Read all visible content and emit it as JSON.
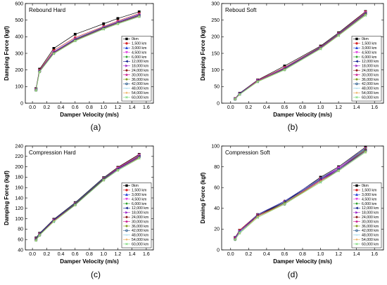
{
  "legend_entries": [
    "0km",
    "1,500 km",
    "3,000 km",
    "4,500 km",
    "6,000 km",
    "12,000 km",
    "18,000 km",
    "24,000 km",
    "30,000 km",
    "36,000 km",
    "42,000 km",
    "48,000 km",
    "54,000 km",
    "60,000 km"
  ],
  "legend_colors": [
    "#000000",
    "#d62728",
    "#1f3fd6",
    "#e040e0",
    "#2ca02c",
    "#0a1a8a",
    "#9a22c8",
    "#8b1a1a",
    "#c8158c",
    "#7f9a1a",
    "#2f5f8f",
    "#7ec8e3",
    "#e8a040",
    "#88dd88"
  ],
  "legend_markers": [
    "square",
    "circle",
    "triangle-up",
    "triangle-down",
    "diamond",
    "triangle-left",
    "triangle-right",
    "hexagon",
    "star",
    "pentagon",
    "circle-open",
    "line",
    "cross",
    "x"
  ],
  "chart_data": [
    {
      "panel": "a",
      "type": "line",
      "title": "Rebound Hard",
      "caption": "(a)",
      "xlabel": "Damper Velocity (m/s)",
      "ylabel": "Damping Force (kgf)",
      "xlim": [
        -0.1,
        1.7
      ],
      "ylim": [
        0,
        600
      ],
      "xticks": [
        "0.0",
        "0.2",
        "0.4",
        "0.6",
        "0.8",
        "1.0",
        "1.2",
        "1.4",
        "1.6"
      ],
      "yticks": [
        "0",
        "100",
        "200",
        "300",
        "400",
        "500",
        "600"
      ],
      "grid": false,
      "legend_position": "lower-right",
      "x": [
        0.05,
        0.1,
        0.3,
        0.6,
        1.0,
        1.2,
        1.5
      ],
      "series": [
        {
          "name": "0km",
          "values": [
            88,
            205,
            330,
            415,
            478,
            510,
            550
          ]
        },
        {
          "name": "1,500 km",
          "values": [
            85,
            200,
            318,
            395,
            462,
            495,
            540
          ]
        },
        {
          "name": "3,000 km",
          "values": [
            83,
            196,
            310,
            388,
            458,
            490,
            535
          ]
        },
        {
          "name": "4,500 km",
          "values": [
            82,
            195,
            308,
            386,
            456,
            488,
            532
          ]
        },
        {
          "name": "6,000 km",
          "values": [
            82,
            194,
            306,
            384,
            455,
            486,
            530
          ]
        },
        {
          "name": "12,000 km",
          "values": [
            81,
            193,
            305,
            382,
            453,
            485,
            528
          ]
        },
        {
          "name": "18,000 km",
          "values": [
            80,
            192,
            304,
            381,
            452,
            484,
            527
          ]
        },
        {
          "name": "24,000 km",
          "values": [
            80,
            192,
            303,
            380,
            451,
            483,
            526
          ]
        },
        {
          "name": "30,000 km",
          "values": [
            79,
            191,
            302,
            379,
            450,
            482,
            525
          ]
        },
        {
          "name": "36,000 km",
          "values": [
            79,
            190,
            301,
            378,
            449,
            481,
            524
          ]
        },
        {
          "name": "42,000 km",
          "values": [
            78,
            190,
            300,
            377,
            448,
            480,
            523
          ]
        },
        {
          "name": "48,000 km",
          "values": [
            78,
            189,
            299,
            376,
            447,
            479,
            522
          ]
        },
        {
          "name": "54,000 km",
          "values": [
            77,
            188,
            298,
            375,
            446,
            478,
            521
          ]
        },
        {
          "name": "60,000 km",
          "values": [
            77,
            188,
            297,
            374,
            445,
            477,
            520
          ]
        }
      ]
    },
    {
      "panel": "b",
      "type": "line",
      "title": "Reboud Soft",
      "caption": "(b)",
      "xlabel": "Damper Velocity (m/s)",
      "ylabel": "Damping Force (kgf)",
      "xlim": [
        -0.1,
        1.7
      ],
      "ylim": [
        0,
        300
      ],
      "xticks": [
        "0.0",
        "0.2",
        "0.4",
        "0.6",
        "0.8",
        "1.0",
        "1.2",
        "1.4",
        "1.6"
      ],
      "yticks": [
        "0",
        "50",
        "100",
        "150",
        "200",
        "250",
        "300"
      ],
      "grid": false,
      "legend_position": "lower-right",
      "x": [
        0.05,
        0.1,
        0.3,
        0.6,
        1.0,
        1.2,
        1.5
      ],
      "series": [
        {
          "name": "0km",
          "values": [
            14,
            30,
            70,
            112,
            172,
            212,
            276
          ]
        },
        {
          "name": "1,500 km",
          "values": [
            14,
            29,
            69,
            108,
            170,
            210,
            275
          ]
        },
        {
          "name": "3,000 km",
          "values": [
            13,
            29,
            68,
            106,
            169,
            209,
            273
          ]
        },
        {
          "name": "4,500 km",
          "values": [
            13,
            28,
            68,
            105,
            168,
            208,
            272
          ]
        },
        {
          "name": "6,000 km",
          "values": [
            13,
            28,
            67,
            104,
            168,
            208,
            271
          ]
        },
        {
          "name": "12,000 km",
          "values": [
            13,
            28,
            67,
            104,
            167,
            207,
            270
          ]
        },
        {
          "name": "18,000 km",
          "values": [
            13,
            28,
            67,
            103,
            167,
            207,
            270
          ]
        },
        {
          "name": "24,000 km",
          "values": [
            12,
            27,
            66,
            103,
            166,
            206,
            269
          ]
        },
        {
          "name": "30,000 km",
          "values": [
            12,
            27,
            66,
            102,
            166,
            206,
            268
          ]
        },
        {
          "name": "36,000 km",
          "values": [
            12,
            27,
            66,
            102,
            165,
            205,
            268
          ]
        },
        {
          "name": "42,000 km",
          "values": [
            12,
            27,
            65,
            101,
            165,
            205,
            267
          ]
        },
        {
          "name": "48,000 km",
          "values": [
            12,
            26,
            65,
            101,
            164,
            204,
            266
          ]
        },
        {
          "name": "54,000 km",
          "values": [
            12,
            26,
            65,
            100,
            164,
            204,
            265
          ]
        },
        {
          "name": "60,000 km",
          "values": [
            12,
            26,
            64,
            100,
            163,
            203,
            264
          ]
        }
      ]
    },
    {
      "panel": "c",
      "type": "line",
      "title": "Compression Hard",
      "caption": "(c)",
      "xlabel": "Damper Velocity (m/s)",
      "ylabel": "Damping Force (kgf)",
      "xlim": [
        -0.1,
        1.7
      ],
      "ylim": [
        40,
        240
      ],
      "xticks": [
        "0.0",
        "0.2",
        "0.4",
        "0.6",
        "0.8",
        "1.0",
        "1.2",
        "1.4",
        "1.6"
      ],
      "yticks": [
        "40",
        "60",
        "80",
        "100",
        "120",
        "140",
        "160",
        "180",
        "200",
        "220",
        "240"
      ],
      "grid": false,
      "legend_position": "lower-right",
      "x": [
        0.05,
        0.1,
        0.3,
        0.6,
        1.0,
        1.2,
        1.5
      ],
      "series": [
        {
          "name": "0km",
          "values": [
            63,
            72,
            99,
            131,
            179,
            199,
            224
          ]
        },
        {
          "name": "1,500 km",
          "values": [
            62,
            71,
            98,
            130,
            178,
            198,
            223
          ]
        },
        {
          "name": "3,000 km",
          "values": [
            62,
            71,
            98,
            130,
            178,
            197,
            222
          ]
        },
        {
          "name": "4,500 km",
          "values": [
            61,
            70,
            97,
            129,
            177,
            197,
            222
          ]
        },
        {
          "name": "6,000 km",
          "values": [
            61,
            70,
            97,
            129,
            177,
            196,
            221
          ]
        },
        {
          "name": "12,000 km",
          "values": [
            60,
            70,
            97,
            128,
            176,
            196,
            220
          ]
        },
        {
          "name": "18,000 km",
          "values": [
            60,
            69,
            96,
            128,
            176,
            195,
            220
          ]
        },
        {
          "name": "24,000 km",
          "values": [
            60,
            69,
            96,
            128,
            176,
            195,
            219
          ]
        },
        {
          "name": "30,000 km",
          "values": [
            59,
            69,
            96,
            127,
            175,
            195,
            219
          ]
        },
        {
          "name": "36,000 km",
          "values": [
            59,
            69,
            95,
            127,
            175,
            194,
            218
          ]
        },
        {
          "name": "42,000 km",
          "values": [
            59,
            68,
            95,
            127,
            175,
            194,
            218
          ]
        },
        {
          "name": "48,000 km",
          "values": [
            58,
            68,
            95,
            126,
            174,
            194,
            217
          ]
        },
        {
          "name": "54,000 km",
          "values": [
            58,
            68,
            95,
            126,
            174,
            193,
            217
          ]
        },
        {
          "name": "60,000 km",
          "values": [
            58,
            68,
            94,
            126,
            174,
            193,
            216
          ]
        }
      ]
    },
    {
      "panel": "d",
      "type": "line",
      "title": "Compression Soft",
      "caption": "(d)",
      "xlabel": "Damper Velocity (m/s)",
      "ylabel": "Daming Force (kgf)",
      "xlim": [
        -0.1,
        1.7
      ],
      "ylim": [
        0,
        100
      ],
      "xticks": [
        "0.0",
        "0.2",
        "0.4",
        "0.6",
        "0.8",
        "1.0",
        "1.2",
        "1.4",
        "1.6"
      ],
      "yticks": [
        "0",
        "20",
        "40",
        "60",
        "80",
        "100"
      ],
      "grid": false,
      "legend_position": "lower-right",
      "x": [
        0.05,
        0.1,
        0.3,
        0.6,
        1.0,
        1.2,
        1.5
      ],
      "series": [
        {
          "name": "0km",
          "values": [
            12,
            19,
            34,
            46,
            70,
            80,
            99
          ]
        },
        {
          "name": "1,500 km",
          "values": [
            12,
            19,
            34,
            47,
            69,
            79,
            98
          ]
        },
        {
          "name": "3,000 km",
          "values": [
            12,
            18,
            34,
            47,
            69,
            79,
            98
          ]
        },
        {
          "name": "4,500 km",
          "values": [
            11,
            18,
            33,
            46,
            68,
            79,
            97
          ]
        },
        {
          "name": "6,000 km",
          "values": [
            11,
            18,
            33,
            46,
            68,
            78,
            97
          ]
        },
        {
          "name": "12,000 km",
          "values": [
            11,
            18,
            33,
            46,
            68,
            78,
            96
          ]
        },
        {
          "name": "18,000 km",
          "values": [
            11,
            18,
            33,
            45,
            67,
            78,
            96
          ]
        },
        {
          "name": "24,000 km",
          "values": [
            11,
            17,
            33,
            45,
            67,
            77,
            96
          ]
        },
        {
          "name": "30,000 km",
          "values": [
            11,
            17,
            32,
            45,
            67,
            77,
            95
          ]
        },
        {
          "name": "36,000 km",
          "values": [
            10,
            17,
            32,
            45,
            66,
            77,
            95
          ]
        },
        {
          "name": "42,000 km",
          "values": [
            10,
            17,
            32,
            44,
            66,
            77,
            95
          ]
        },
        {
          "name": "48,000 km",
          "values": [
            10,
            17,
            32,
            44,
            66,
            76,
            94
          ]
        },
        {
          "name": "54,000 km",
          "values": [
            10,
            16,
            32,
            44,
            66,
            76,
            94
          ]
        },
        {
          "name": "60,000 km",
          "values": [
            10,
            16,
            31,
            44,
            65,
            76,
            94
          ]
        }
      ]
    }
  ]
}
